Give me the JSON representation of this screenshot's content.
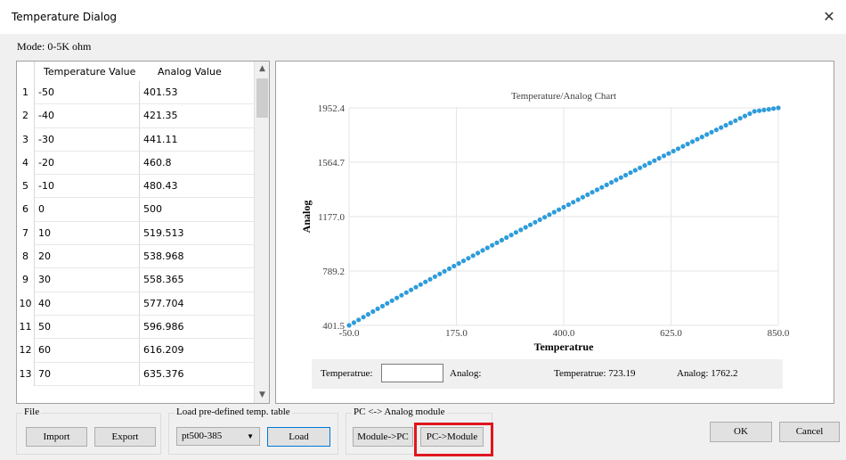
{
  "window": {
    "title": "Temperature Dialog",
    "close_glyph": "✕"
  },
  "mode_label": "Mode:  0-5K ohm",
  "table": {
    "headers": [
      "Temperature Value",
      "Analog Value"
    ],
    "rows": [
      {
        "n": "1",
        "temp": "-50",
        "analog": "401.53"
      },
      {
        "n": "2",
        "temp": "-40",
        "analog": "421.35"
      },
      {
        "n": "3",
        "temp": "-30",
        "analog": "441.11"
      },
      {
        "n": "4",
        "temp": "-20",
        "analog": "460.8"
      },
      {
        "n": "5",
        "temp": "-10",
        "analog": "480.43"
      },
      {
        "n": "6",
        "temp": "0",
        "analog": "500"
      },
      {
        "n": "7",
        "temp": "10",
        "analog": "519.513"
      },
      {
        "n": "8",
        "temp": "20",
        "analog": "538.968"
      },
      {
        "n": "9",
        "temp": "30",
        "analog": "558.365"
      },
      {
        "n": "10",
        "temp": "40",
        "analog": "577.704"
      },
      {
        "n": "11",
        "temp": "50",
        "analog": "596.986"
      },
      {
        "n": "12",
        "temp": "60",
        "analog": "616.209"
      },
      {
        "n": "13",
        "temp": "70",
        "analog": "635.376"
      }
    ],
    "scroll_up_glyph": "▲",
    "scroll_down_glyph": "▼"
  },
  "chart_data": {
    "type": "scatter",
    "title": "Temperature/Analog Chart",
    "xlabel": "Temperatrue",
    "ylabel": "Analog",
    "xlim": [
      -50.0,
      850.0
    ],
    "ylim": [
      401.5,
      1952.4
    ],
    "x_ticks": [
      "-50.0",
      "175.0",
      "400.0",
      "625.0",
      "850.0"
    ],
    "y_ticks": [
      "401.5",
      "789.2",
      "1177.0",
      "1564.7",
      "1952.4"
    ],
    "grid": true,
    "color": "#2e9cdb",
    "series": [
      {
        "x": [
          -50,
          -40,
          -30,
          -20,
          -10,
          0,
          10,
          20,
          30,
          40,
          50,
          60,
          70,
          100,
          150,
          200,
          250,
          300,
          350,
          400,
          450,
          500,
          550,
          600,
          650,
          700,
          750,
          800,
          850
        ],
        "y": [
          401.53,
          421.35,
          441.11,
          460.8,
          480.43,
          500,
          519.513,
          538.968,
          558.365,
          577.704,
          596.986,
          616.209,
          635.376,
          692.5,
          786.9,
          880.3,
          972.7,
          1064.3,
          1154.8,
          1244.4,
          1333.1,
          1420.8,
          1507.5,
          1593.3,
          1678.2,
          1762.2,
          1845.2,
          1927.3,
          1952.4
        ]
      }
    ]
  },
  "readout": {
    "temp_label": "Temperatrue:",
    "analog_label": "Analog:",
    "temp_value_text": "Temperatrue:  723.19",
    "analog_value_text": "Analog:  1762.2"
  },
  "file_group": {
    "label": "File",
    "import": "Import",
    "export": "Export"
  },
  "load_group": {
    "label": "Load pre-defined temp. table",
    "selected": "pt500-385",
    "arrow": "▼",
    "load": "Load"
  },
  "pc_group": {
    "label": "PC <-> Analog module",
    "module_to_pc": "Module->PC",
    "pc_to_module": "PC->Module"
  },
  "ok": "OK",
  "cancel": "Cancel",
  "accent": "#e0161e"
}
